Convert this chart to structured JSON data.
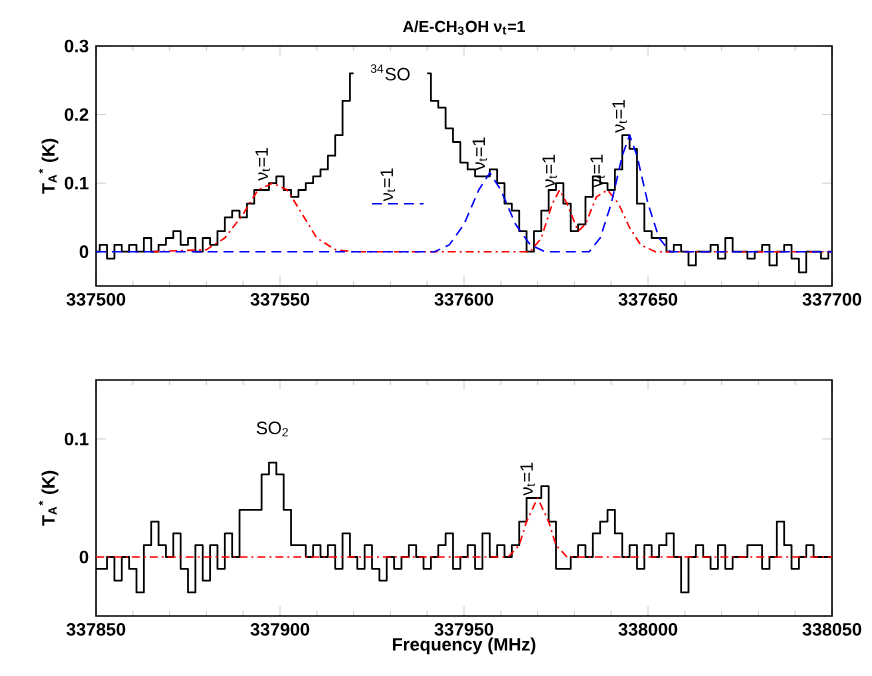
{
  "chart_data": [
    {
      "type": "step",
      "title": "A/E-CH$_{3}$OH ν$_{t}$=1",
      "ylabel": "T$_{A}$$^{*}$ (K)",
      "xlim": [
        337500,
        337700
      ],
      "xticks": [
        337500,
        337550,
        337600,
        337650,
        337700
      ],
      "ylim": [
        -0.05,
        0.3
      ],
      "yticks": [
        0,
        0.1,
        0.2,
        0.3
      ],
      "series": [
        {
          "color": "#000000",
          "line_style": "solid",
          "x": [
            337500,
            337502,
            337504,
            337506,
            337508,
            337510,
            337512,
            337514,
            337516,
            337518,
            337520,
            337522,
            337524,
            337526,
            337528,
            337530,
            337532,
            337534,
            337536,
            337538,
            337540,
            337542,
            337544,
            337546,
            337548,
            337550,
            337552,
            337554,
            337556,
            337558,
            337560,
            337562,
            337564,
            337566,
            337568,
            337570,
            337572,
            337574,
            337576,
            337578,
            337580,
            337582,
            337584,
            337586,
            337588,
            337590,
            337592,
            337594,
            337596,
            337598,
            337600,
            337602,
            337604,
            337606,
            337608,
            337610,
            337612,
            337614,
            337616,
            337618,
            337620,
            337622,
            337624,
            337626,
            337628,
            337630,
            337632,
            337634,
            337636,
            337638,
            337640,
            337642,
            337644,
            337646,
            337648,
            337650,
            337652,
            337654,
            337656,
            337658,
            337660,
            337662,
            337664,
            337666,
            337668,
            337670,
            337672,
            337674,
            337676,
            337678,
            337680,
            337682,
            337684,
            337686,
            337688,
            337690,
            337692,
            337694,
            337696,
            337698,
            337700
          ],
          "values": [
            0.0,
            0.01,
            -0.01,
            0.01,
            0.0,
            0.01,
            0.0,
            0.02,
            0.0,
            0.01,
            0.02,
            0.03,
            0.01,
            0.02,
            0.0,
            0.02,
            0.01,
            0.03,
            0.05,
            0.06,
            0.05,
            0.07,
            0.09,
            0.09,
            0.1,
            0.11,
            0.09,
            0.08,
            0.09,
            0.1,
            0.11,
            0.12,
            0.14,
            0.17,
            0.22,
            0.26,
            null,
            null,
            null,
            null,
            null,
            null,
            null,
            null,
            null,
            0.26,
            0.22,
            0.21,
            0.18,
            0.16,
            0.13,
            0.12,
            0.11,
            0.11,
            0.12,
            0.1,
            0.07,
            0.06,
            0.03,
            0.0,
            0.03,
            0.06,
            0.09,
            0.1,
            0.07,
            0.03,
            0.04,
            0.08,
            0.11,
            0.1,
            0.09,
            0.12,
            0.17,
            0.15,
            0.07,
            0.03,
            0.02,
            0.02,
            0.0,
            0.01,
            0.0,
            -0.02,
            0.0,
            0.0,
            0.01,
            -0.01,
            0.02,
            0.0,
            0.0,
            -0.01,
            0.0,
            0.01,
            -0.02,
            0.0,
            0.01,
            -0.01,
            -0.03,
            0.0,
            0.0,
            -0.01,
            0.0
          ]
        },
        {
          "type": "line",
          "color": "#ff0000",
          "line_style": "dashdot",
          "x": [
            337515,
            337530,
            337535,
            337540,
            337544,
            337548,
            337552,
            337556,
            337560,
            337565,
            337570,
            337618,
            337621,
            337624,
            337626,
            337628,
            337631,
            337633,
            337636,
            337639,
            337642,
            337645,
            337648,
            337652,
            337700
          ],
          "values": [
            0,
            0.003,
            0.02,
            0.055,
            0.09,
            0.1,
            0.09,
            0.055,
            0.02,
            0.003,
            0,
            0,
            0.02,
            0.07,
            0.09,
            0.07,
            0.03,
            0.04,
            0.08,
            0.09,
            0.07,
            0.035,
            0.01,
            0,
            0
          ]
        },
        {
          "type": "line",
          "color": "#0000ff",
          "line_style": "dashed",
          "x": [
            337500,
            337592,
            337596,
            337600,
            337604,
            337607,
            337610,
            337614,
            337618,
            337622,
            337634,
            337637,
            337640,
            337643,
            337645,
            337647,
            337650,
            337653,
            337656,
            337700
          ],
          "values": [
            0,
            0,
            0.01,
            0.04,
            0.09,
            0.115,
            0.09,
            0.04,
            0.01,
            0,
            0,
            0.02,
            0.07,
            0.14,
            0.17,
            0.14,
            0.07,
            0.02,
            0,
            0
          ]
        },
        {
          "type": "line",
          "color": "#0000ff",
          "line_style": "dashed",
          "x": [
            337575,
            337589
          ],
          "values": [
            0.07,
            0.07
          ]
        }
      ],
      "annotations": [
        "$^{34}$SO",
        {
          "text": "ν$_{t}$=1",
          "x": 337548,
          "y": 0.1
        },
        {
          "text": "ν$_{t}$=1",
          "x": 337582,
          "y": 0.07
        },
        {
          "text": "ν$_{t}$=1",
          "x": 337607,
          "y": 0.115
        },
        {
          "text": "ν$_{t}$=1",
          "x": 337626,
          "y": 0.09
        },
        {
          "text": "ν$_{t}$=1",
          "x": 337639,
          "y": 0.09
        },
        {
          "text": "ν$_{t}$=1",
          "x": 337645,
          "y": 0.17
        }
      ]
    },
    {
      "type": "step",
      "xlabel": "Frequency (MHz)",
      "ylabel": "T$_{A}$$^{*}$ (K)",
      "xlim": [
        337850,
        338050
      ],
      "xticks": [
        337850,
        337900,
        337950,
        338000,
        338050
      ],
      "ylim": [
        -0.05,
        0.15
      ],
      "yticks": [
        0,
        0.1
      ],
      "series": [
        {
          "color": "#000000",
          "line_style": "solid",
          "x": [
            337850,
            337852,
            337854,
            337856,
            337858,
            337860,
            337862,
            337864,
            337866,
            337868,
            337870,
            337872,
            337874,
            337876,
            337878,
            337880,
            337882,
            337884,
            337886,
            337888,
            337890,
            337892,
            337894,
            337896,
            337898,
            337900,
            337902,
            337904,
            337906,
            337908,
            337910,
            337912,
            337914,
            337916,
            337918,
            337920,
            337922,
            337924,
            337926,
            337928,
            337930,
            337932,
            337934,
            337936,
            337938,
            337940,
            337942,
            337944,
            337946,
            337948,
            337950,
            337952,
            337954,
            337956,
            337958,
            337960,
            337962,
            337964,
            337966,
            337968,
            337970,
            337972,
            337974,
            337976,
            337978,
            337980,
            337982,
            337984,
            337986,
            337988,
            337990,
            337992,
            337994,
            337996,
            337998,
            338000,
            338002,
            338004,
            338006,
            338008,
            338010,
            338012,
            338014,
            338016,
            338018,
            338020,
            338022,
            338024,
            338026,
            338028,
            338030,
            338032,
            338034,
            338036,
            338038,
            338040,
            338042,
            338044,
            338046,
            338048,
            338050
          ],
          "values": [
            -0.01,
            -0.01,
            0.0,
            -0.02,
            0.0,
            -0.01,
            -0.03,
            0.01,
            0.03,
            0.01,
            0.0,
            0.02,
            -0.01,
            -0.03,
            0.01,
            -0.02,
            0.01,
            -0.01,
            0.02,
            0.0,
            0.04,
            0.04,
            0.04,
            0.07,
            0.08,
            0.07,
            0.04,
            0.01,
            0.01,
            0.0,
            0.01,
            0.0,
            0.01,
            -0.01,
            0.02,
            0.0,
            -0.01,
            0.01,
            -0.01,
            -0.02,
            0.0,
            -0.01,
            0.0,
            0.01,
            0.0,
            -0.01,
            0.0,
            0.01,
            0.02,
            -0.01,
            0.0,
            0.01,
            -0.01,
            0.02,
            0.0,
            0.01,
            0.0,
            0.01,
            0.03,
            0.05,
            0.05,
            0.06,
            0.03,
            -0.01,
            -0.01,
            0.0,
            0.01,
            0.0,
            0.02,
            0.03,
            0.04,
            0.02,
            0.0,
            0.01,
            -0.01,
            0.01,
            0.0,
            0.01,
            0.02,
            0.0,
            -0.03,
            0.0,
            0.01,
            0.0,
            -0.01,
            0.01,
            -0.01,
            0.0,
            0.0,
            0.01,
            0.01,
            -0.01,
            0.0,
            0.03,
            0.01,
            -0.01,
            0.0,
            0.01,
            0.0,
            0.0,
            0.0
          ]
        },
        {
          "type": "line",
          "color": "#ff0000",
          "line_style": "dashdot",
          "x": [
            337850,
            337962,
            337965,
            337967,
            337970,
            337973,
            337975,
            337978,
            338050
          ],
          "values": [
            0,
            0,
            0.01,
            0.03,
            0.05,
            0.03,
            0.01,
            0,
            0
          ]
        }
      ],
      "annotations": [
        {
          "text": "SO$_{2}$",
          "x": 337898,
          "y": 0.08
        },
        {
          "text": "ν$_{t}$=1",
          "x": 337970,
          "y": 0.05
        }
      ]
    }
  ]
}
